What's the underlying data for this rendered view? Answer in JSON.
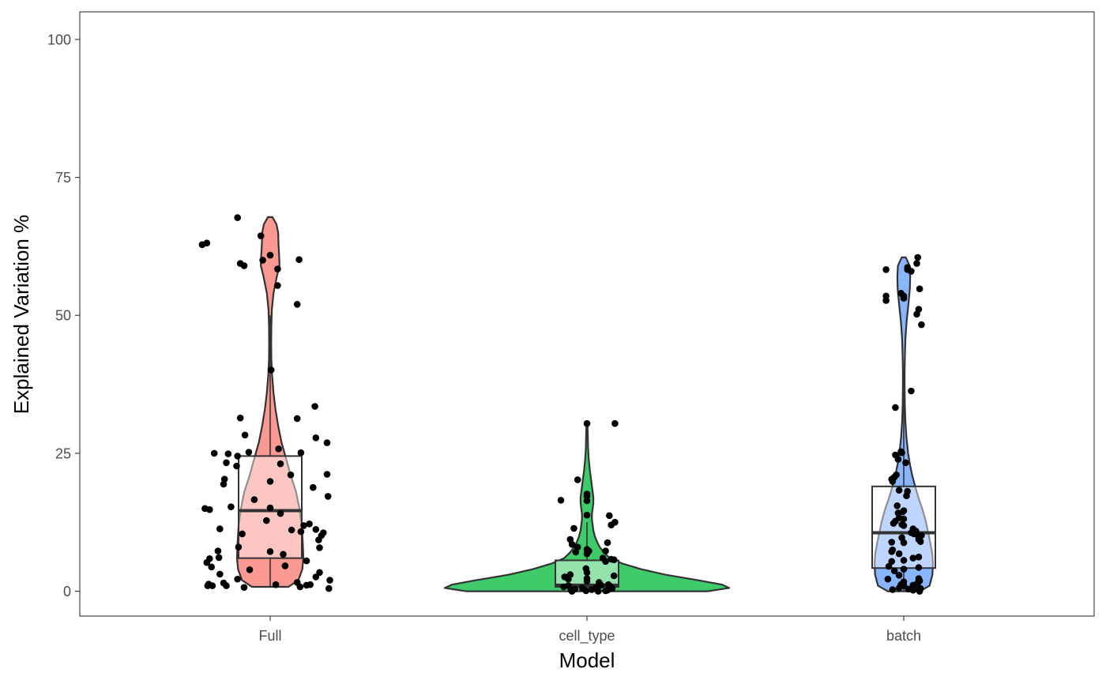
{
  "chart_data": {
    "type": "violin",
    "title": "",
    "xlabel": "Model",
    "ylabel": "Explained Variation %",
    "ylim": [
      -4.5,
      105
    ],
    "y_ticks": [
      0,
      25,
      50,
      75,
      100
    ],
    "y_tick_labels": [
      "0",
      "25",
      "50",
      "75",
      "100"
    ],
    "categories": [
      "Full",
      "cell_type",
      "batch"
    ],
    "grid": false,
    "legend": "none",
    "colors": {
      "Full": "#f8766d",
      "cell_type": "#00ba38",
      "batch": "#619cff",
      "points": "#000000",
      "outline": "#333333"
    },
    "series": [
      {
        "category": "Full",
        "box": {
          "q1": 6.0,
          "median": 14.6,
          "q3": 24.5,
          "whisker_low": 0.8,
          "whisker_high": 50.0
        },
        "density": [
          [
            0.8,
            0.55
          ],
          [
            2,
            0.85
          ],
          [
            4,
            0.97
          ],
          [
            6,
            1.0
          ],
          [
            9,
            0.98
          ],
          [
            12,
            0.95
          ],
          [
            15,
            0.88
          ],
          [
            18,
            0.78
          ],
          [
            21,
            0.62
          ],
          [
            24,
            0.48
          ],
          [
            27,
            0.34
          ],
          [
            30,
            0.24
          ],
          [
            33,
            0.16
          ],
          [
            36,
            0.1
          ],
          [
            39,
            0.06
          ],
          [
            42,
            0.035
          ],
          [
            45,
            0.03
          ],
          [
            48,
            0.035
          ],
          [
            51,
            0.05
          ],
          [
            54,
            0.1
          ],
          [
            57,
            0.2
          ],
          [
            59,
            0.28
          ],
          [
            61,
            0.27
          ],
          [
            63,
            0.25
          ],
          [
            65,
            0.24
          ],
          [
            66.5,
            0.19
          ],
          [
            67.8,
            0.07
          ]
        ],
        "points": [
          [
            67.7,
            -0.35
          ],
          [
            64.4,
            -0.1
          ],
          [
            63.1,
            -0.68
          ],
          [
            62.8,
            -0.73
          ],
          [
            60.9,
            0.0
          ],
          [
            60.1,
            0.31
          ],
          [
            60.0,
            -0.08
          ],
          [
            59.4,
            -0.32
          ],
          [
            59.0,
            -0.28
          ],
          [
            58.4,
            0.08
          ],
          [
            55.4,
            0.08
          ],
          [
            52.0,
            0.29
          ],
          [
            40.1,
            0.01
          ],
          [
            33.5,
            0.48
          ],
          [
            31.4,
            -0.32
          ],
          [
            31.3,
            0.29
          ],
          [
            28.3,
            -0.27
          ],
          [
            27.8,
            0.49
          ],
          [
            26.9,
            0.61
          ],
          [
            25.8,
            0.09
          ],
          [
            25.2,
            -0.23
          ],
          [
            25.1,
            0.33
          ],
          [
            25.0,
            -0.6
          ],
          [
            24.9,
            -0.45
          ],
          [
            24.5,
            -0.35
          ],
          [
            23.3,
            -0.47
          ],
          [
            23.1,
            0.11
          ],
          [
            22.7,
            -0.36
          ],
          [
            21.2,
            0.61
          ],
          [
            21.1,
            0.22
          ],
          [
            20.3,
            -0.49
          ],
          [
            19.9,
            0.0
          ],
          [
            19.4,
            -0.5
          ],
          [
            18.8,
            0.46
          ],
          [
            17.2,
            0.62
          ],
          [
            16.6,
            -0.17
          ],
          [
            15.3,
            -0.42
          ],
          [
            15.1,
            0.0
          ],
          [
            15.0,
            -0.7
          ],
          [
            14.8,
            -0.65
          ],
          [
            14.1,
            0.11
          ],
          [
            12.8,
            -0.04
          ],
          [
            12.2,
            0.42
          ],
          [
            11.9,
            0.36
          ],
          [
            11.3,
            -0.54
          ],
          [
            11.1,
            0.23
          ],
          [
            11.2,
            0.49
          ],
          [
            10.8,
            0.33
          ],
          [
            10.6,
            0.57
          ],
          [
            10.4,
            -0.3
          ],
          [
            10.1,
            0.55
          ],
          [
            9.3,
            0.52
          ],
          [
            8.0,
            -0.34
          ],
          [
            7.9,
            0.53
          ],
          [
            7.3,
            -0.56
          ],
          [
            7.2,
            0.0
          ],
          [
            6.7,
            0.14
          ],
          [
            6.1,
            -0.55
          ],
          [
            5.9,
            -0.65
          ],
          [
            5.5,
            0.39
          ],
          [
            5.2,
            -0.68
          ],
          [
            4.6,
            0.16
          ],
          [
            4.4,
            -0.63
          ],
          [
            3.9,
            -0.22
          ],
          [
            3.4,
            0.53
          ],
          [
            3.1,
            -0.54
          ],
          [
            2.6,
            0.49
          ],
          [
            2.2,
            -0.35
          ],
          [
            2.0,
            0.64
          ],
          [
            1.6,
            0.29
          ],
          [
            1.5,
            -0.5
          ],
          [
            1.3,
            -0.66
          ],
          [
            1.2,
            0.06
          ],
          [
            1.2,
            0.43
          ],
          [
            1.1,
            0.39
          ],
          [
            1.0,
            -0.67
          ],
          [
            1.0,
            -0.62
          ],
          [
            1.0,
            -0.47
          ],
          [
            0.8,
            0.32
          ],
          [
            0.7,
            -0.28
          ],
          [
            0.5,
            0.63
          ]
        ]
      },
      {
        "category": "cell_type",
        "box": {
          "q1": 0.8,
          "median": 1.1,
          "q3": 5.6,
          "whisker_low": 0.0,
          "whisker_high": 12.5
        },
        "density": [
          [
            0.0,
            0.85
          ],
          [
            0.6,
            1.0
          ],
          [
            1.2,
            0.95
          ],
          [
            2,
            0.78
          ],
          [
            3,
            0.55
          ],
          [
            4,
            0.38
          ],
          [
            5,
            0.25
          ],
          [
            6,
            0.16
          ],
          [
            7,
            0.12
          ],
          [
            8,
            0.09
          ],
          [
            9,
            0.07
          ],
          [
            10,
            0.055
          ],
          [
            11,
            0.045
          ],
          [
            12,
            0.04
          ],
          [
            13,
            0.035
          ],
          [
            14,
            0.035
          ],
          [
            15,
            0.04
          ],
          [
            16,
            0.045
          ],
          [
            17,
            0.045
          ],
          [
            18,
            0.04
          ],
          [
            19,
            0.035
          ],
          [
            20,
            0.03
          ],
          [
            21,
            0.025
          ],
          [
            22,
            0.02
          ],
          [
            24,
            0.012
          ],
          [
            26,
            0.008
          ],
          [
            28,
            0.006
          ],
          [
            30.3,
            0.004
          ]
        ],
        "points": [
          [
            30.4,
            0.0
          ],
          [
            30.4,
            0.3
          ],
          [
            20.2,
            -0.1
          ],
          [
            17.6,
            0.0
          ],
          [
            17.2,
            0.0
          ],
          [
            16.5,
            -0.28
          ],
          [
            16.4,
            0.0
          ],
          [
            13.8,
            0.0
          ],
          [
            13.7,
            0.24
          ],
          [
            12.5,
            0.3
          ],
          [
            12.0,
            0.26
          ],
          [
            11.4,
            -0.14
          ],
          [
            9.4,
            -0.18
          ],
          [
            8.8,
            0.22
          ],
          [
            8.5,
            -0.16
          ],
          [
            8.0,
            -0.1
          ],
          [
            7.6,
            0.0
          ],
          [
            7.3,
            0.02
          ],
          [
            7.3,
            0.2
          ],
          [
            7.1,
            -0.12
          ],
          [
            6.8,
            0.0
          ],
          [
            6.0,
            0.17
          ],
          [
            5.8,
            0.26
          ],
          [
            5.7,
            0.29
          ],
          [
            5.4,
            0.2
          ],
          [
            4.1,
            -0.01
          ],
          [
            3.4,
            0.0
          ],
          [
            3.0,
            -0.18
          ],
          [
            2.8,
            0.29
          ],
          [
            2.6,
            -0.24
          ],
          [
            2.3,
            0.0
          ],
          [
            2.2,
            -0.2
          ],
          [
            1.8,
            0.0
          ],
          [
            1.6,
            0.13
          ],
          [
            1.2,
            0.23
          ],
          [
            1.1,
            0.15
          ],
          [
            1.0,
            -0.2
          ],
          [
            0.9,
            0.25
          ],
          [
            0.8,
            -0.25
          ],
          [
            0.7,
            0.1
          ],
          [
            0.6,
            -0.05
          ],
          [
            0.5,
            0.27
          ],
          [
            0.4,
            -0.13
          ],
          [
            0.3,
            0.05
          ],
          [
            0.2,
            0.22
          ],
          [
            0.2,
            -0.17
          ],
          [
            0.1,
            -0.01
          ],
          [
            0.1,
            0.2
          ],
          [
            0.0,
            -0.16
          ],
          [
            0.0,
            0.12
          ]
        ]
      },
      {
        "category": "batch",
        "box": {
          "q1": 4.2,
          "median": 10.6,
          "q3": 19.0,
          "whisker_low": 0.0,
          "whisker_high": 36.0
        },
        "density": [
          [
            0.0,
            0.55
          ],
          [
            1,
            0.88
          ],
          [
            3,
            0.98
          ],
          [
            5,
            1.0
          ],
          [
            7,
            0.97
          ],
          [
            9,
            0.9
          ],
          [
            11,
            0.82
          ],
          [
            13,
            0.74
          ],
          [
            15,
            0.63
          ],
          [
            17,
            0.5
          ],
          [
            19,
            0.39
          ],
          [
            21,
            0.29
          ],
          [
            23,
            0.21
          ],
          [
            25,
            0.15
          ],
          [
            28,
            0.09
          ],
          [
            31,
            0.055
          ],
          [
            34,
            0.035
          ],
          [
            37,
            0.03
          ],
          [
            40,
            0.03
          ],
          [
            43,
            0.04
          ],
          [
            46,
            0.06
          ],
          [
            49,
            0.1
          ],
          [
            52,
            0.16
          ],
          [
            55,
            0.21
          ],
          [
            57,
            0.22
          ],
          [
            59,
            0.2
          ],
          [
            60.5,
            0.07
          ]
        ],
        "points": [
          [
            60.5,
            0.15
          ],
          [
            59.4,
            0.14
          ],
          [
            58.7,
            0.04
          ],
          [
            58.3,
            0.04
          ],
          [
            58.3,
            -0.19
          ],
          [
            58.0,
            0.08
          ],
          [
            54.8,
            0.17
          ],
          [
            54.0,
            -0.03
          ],
          [
            53.5,
            -0.19
          ],
          [
            53.5,
            0.0
          ],
          [
            53.1,
            0.0
          ],
          [
            52.7,
            -0.19
          ],
          [
            51.1,
            0.16
          ],
          [
            50.2,
            0.14
          ],
          [
            48.3,
            0.19
          ],
          [
            36.3,
            0.08
          ],
          [
            33.3,
            -0.09
          ],
          [
            25.3,
            -0.03
          ],
          [
            25.1,
            -0.02
          ],
          [
            24.7,
            -0.09
          ],
          [
            23.9,
            -0.06
          ],
          [
            23.3,
            0.02
          ],
          [
            21.1,
            -0.08
          ],
          [
            20.7,
            -0.1
          ],
          [
            20.3,
            -0.13
          ],
          [
            19.9,
            -0.12
          ],
          [
            18.3,
            -0.05
          ],
          [
            18.1,
            0.04
          ],
          [
            17.3,
            0.03
          ],
          [
            15.5,
            -0.07
          ],
          [
            14.6,
            0.0
          ],
          [
            14.4,
            -0.01
          ],
          [
            14.2,
            -0.06
          ],
          [
            13.3,
            -0.05
          ],
          [
            13.1,
            0.0
          ],
          [
            12.7,
            -0.09
          ],
          [
            12.3,
            -0.11
          ],
          [
            12.1,
            -0.02
          ],
          [
            11.9,
            0.0
          ],
          [
            11.3,
            0.1
          ],
          [
            10.9,
            0.13
          ],
          [
            10.6,
            0.08
          ],
          [
            10.4,
            0.11
          ],
          [
            10.3,
            0.14
          ],
          [
            10.1,
            0.19
          ],
          [
            9.7,
            -0.02
          ],
          [
            9.4,
            0.16
          ],
          [
            9.0,
            0.18
          ],
          [
            8.9,
            -0.13
          ],
          [
            8.8,
            0.0
          ],
          [
            7.5,
            -0.12
          ],
          [
            7.2,
            -0.13
          ],
          [
            6.8,
            -0.05
          ],
          [
            6.2,
            0.16
          ],
          [
            6.0,
            0.1
          ],
          [
            5.6,
            0.0
          ],
          [
            5.4,
            -0.13
          ],
          [
            4.5,
            -0.16
          ],
          [
            4.3,
            0.16
          ],
          [
            4.0,
            0.0
          ],
          [
            3.7,
            -0.1
          ],
          [
            2.9,
            -0.05
          ],
          [
            2.3,
            0.16
          ],
          [
            2.2,
            -0.17
          ],
          [
            1.9,
            0.17
          ],
          [
            1.7,
            0.0
          ],
          [
            1.5,
            0.15
          ],
          [
            1.2,
            -0.03
          ],
          [
            1.1,
            0.1
          ],
          [
            1.0,
            0.0
          ],
          [
            0.9,
            0.14
          ],
          [
            0.7,
            0.11
          ],
          [
            0.6,
            -0.05
          ],
          [
            0.5,
            0.18
          ],
          [
            0.4,
            0.05
          ],
          [
            0.3,
            -0.12
          ],
          [
            0.2,
            0.1
          ],
          [
            0.0,
            0.17
          ]
        ]
      }
    ]
  }
}
